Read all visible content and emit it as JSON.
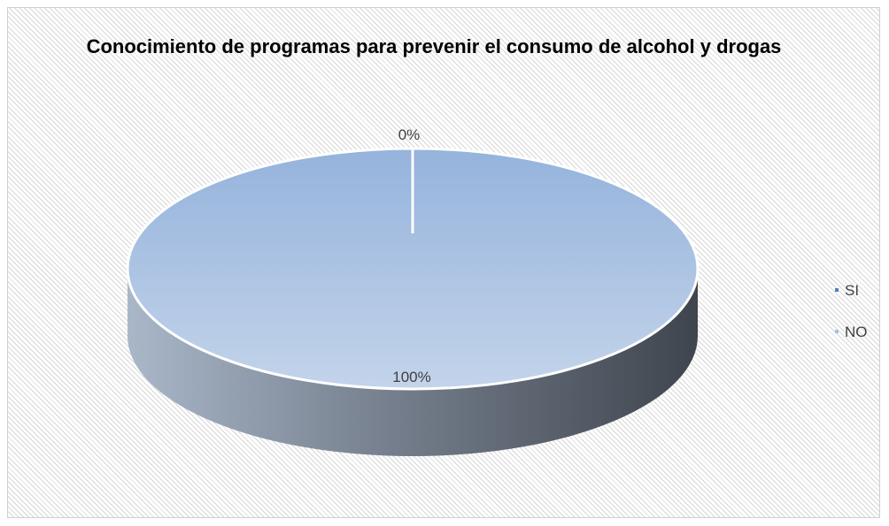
{
  "chart_data": {
    "type": "pie",
    "title": "Conocimiento de programas para prevenir el consumo de alcohol y drogas",
    "categories": [
      "SI",
      "NO"
    ],
    "values": [
      0,
      100
    ],
    "data_labels": [
      "0%",
      "100%"
    ],
    "colors": [
      "#4f81bd",
      "#a7bfe0"
    ],
    "legend_position": "right",
    "style": "3d"
  }
}
